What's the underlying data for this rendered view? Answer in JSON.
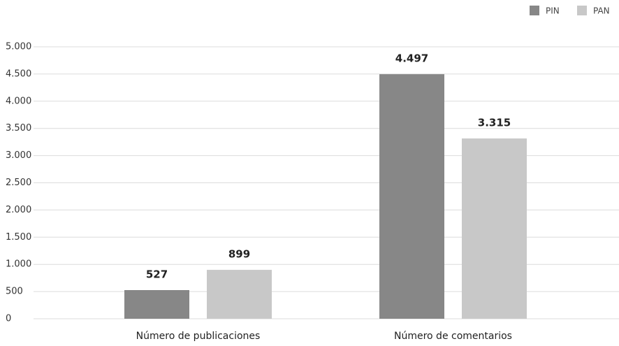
{
  "chart_data": {
    "type": "bar",
    "categories": [
      "Número de publicaciones",
      "Número de comentarios"
    ],
    "series": [
      {
        "name": "PIN",
        "color": "#878787",
        "values": [
          527,
          4497
        ],
        "value_labels": [
          "527",
          "4.497"
        ]
      },
      {
        "name": "PAN",
        "color": "#c8c8c8",
        "values": [
          899,
          3315
        ],
        "value_labels": [
          "899",
          "3.315"
        ]
      }
    ],
    "ylim": [
      0,
      5000
    ],
    "yticks": [
      0,
      500,
      {
        "value": 1000,
        "label": "1.000"
      },
      {
        "value": 1500,
        "label": "1.500"
      },
      {
        "value": 2000,
        "label": "2.000"
      },
      {
        "value": 2500,
        "label": "2.500"
      },
      {
        "value": 3000,
        "label": "3.000"
      },
      {
        "value": 3500,
        "label": "3.500"
      },
      {
        "value": 4000,
        "label": "4.000"
      },
      {
        "value": 4500,
        "label": "4.500"
      },
      {
        "value": 5000,
        "label": "5.000"
      }
    ],
    "grid": true,
    "legend": "top-right"
  }
}
